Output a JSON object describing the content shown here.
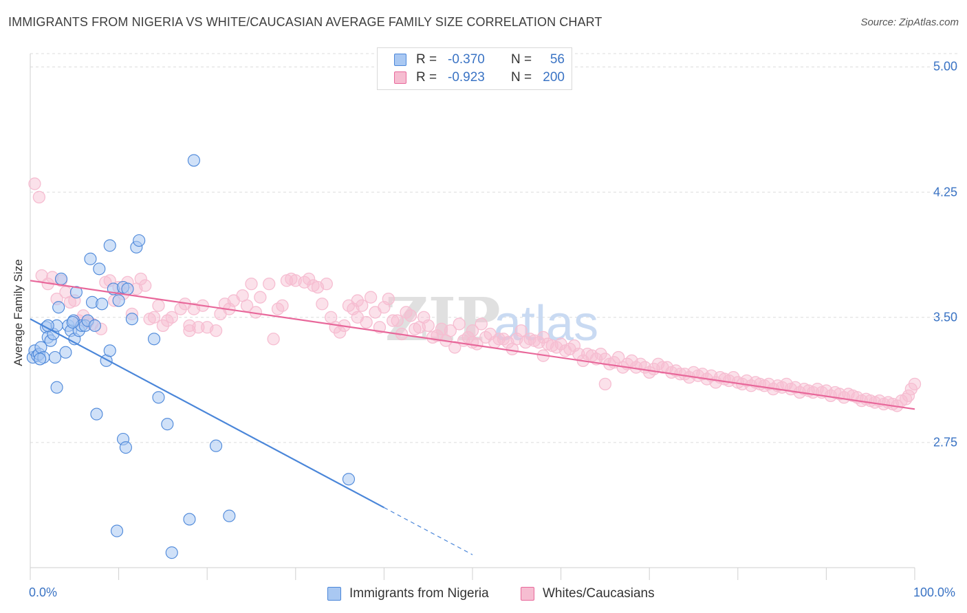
{
  "title": "IMMIGRANTS FROM NIGERIA VS WHITE/CAUCASIAN AVERAGE FAMILY SIZE CORRELATION CHART",
  "source": "Source: ZipAtlas.com",
  "watermark": "ZIPatlas",
  "colors": {
    "blue": "#4a86d9",
    "blue_fill": "#a9c8f2",
    "pink": "#e8679a",
    "pink_fill": "#f6bdd1",
    "tick_text": "#3a73c4"
  },
  "legend": {
    "rows": [
      {
        "r_label": "R =",
        "r_value": "-0.370",
        "n_label": "N =",
        "n_value": "56"
      },
      {
        "r_label": "R =",
        "r_value": "-0.923",
        "n_label": "N =",
        "n_value": "200"
      }
    ]
  },
  "bottom_legend": {
    "series1": "Immigrants from Nigeria",
    "series2": "Whites/Caucasians"
  },
  "chart_data": {
    "type": "scatter",
    "title": "IMMIGRANTS FROM NIGERIA VS WHITE/CAUCASIAN AVERAGE FAMILY SIZE CORRELATION CHART",
    "xlabel": "",
    "ylabel": "Average Family Size",
    "xlim": [
      0,
      100
    ],
    "ylim": [
      2.0,
      5.08
    ],
    "y_ticks": [
      2.75,
      3.5,
      4.25,
      5.0
    ],
    "y_tick_labels": [
      "2.75",
      "3.50",
      "4.25",
      "5.00"
    ],
    "x_tick_labels": [
      "0.0%",
      "100.0%"
    ],
    "grid": "horizontal dashed",
    "legend_position": "top-center",
    "series": [
      {
        "name": "Immigrants from Nigeria",
        "color": "#4a86d9",
        "r": -0.37,
        "n": 56,
        "trend": {
          "x0": 0,
          "y0": 3.49,
          "x1": 40,
          "y1": 2.36,
          "dashed_to_x": 50
        },
        "points": [
          [
            0.3,
            3.26
          ],
          [
            0.5,
            3.3
          ],
          [
            0.8,
            3.27
          ],
          [
            1.0,
            3.28
          ],
          [
            1.2,
            3.32
          ],
          [
            1.5,
            3.26
          ],
          [
            1.8,
            3.44
          ],
          [
            2.0,
            3.38
          ],
          [
            2.3,
            3.36
          ],
          [
            2.6,
            3.4
          ],
          [
            2.8,
            3.26
          ],
          [
            3.2,
            3.56
          ],
          [
            3.5,
            3.73
          ],
          [
            3.0,
            3.45
          ],
          [
            4.0,
            3.29
          ],
          [
            4.3,
            3.45
          ],
          [
            4.6,
            3.42
          ],
          [
            4.9,
            3.48
          ],
          [
            5.2,
            3.65
          ],
          [
            5.0,
            3.37
          ],
          [
            5.5,
            3.42
          ],
          [
            5.8,
            3.45
          ],
          [
            6.2,
            3.45
          ],
          [
            6.5,
            3.48
          ],
          [
            7.0,
            3.59
          ],
          [
            7.3,
            3.45
          ],
          [
            7.8,
            3.79
          ],
          [
            8.1,
            3.58
          ],
          [
            8.6,
            3.24
          ],
          [
            9.0,
            3.3
          ],
          [
            6.8,
            3.85
          ],
          [
            9.4,
            3.67
          ],
          [
            10.0,
            3.6
          ],
          [
            10.5,
            3.68
          ],
          [
            11.0,
            3.67
          ],
          [
            11.5,
            3.49
          ],
          [
            9.0,
            3.93
          ],
          [
            12.0,
            3.92
          ],
          [
            12.3,
            3.96
          ],
          [
            14.0,
            3.37
          ],
          [
            3.0,
            3.08
          ],
          [
            7.5,
            2.92
          ],
          [
            14.5,
            3.02
          ],
          [
            10.5,
            2.77
          ],
          [
            10.8,
            2.72
          ],
          [
            15.5,
            2.86
          ],
          [
            16.0,
            2.09
          ],
          [
            18.0,
            2.29
          ],
          [
            18.5,
            4.44
          ],
          [
            9.8,
            2.22
          ],
          [
            21.0,
            2.73
          ],
          [
            22.5,
            2.31
          ],
          [
            36.0,
            2.53
          ],
          [
            1.1,
            3.25
          ],
          [
            2.0,
            3.45
          ],
          [
            4.8,
            3.47
          ]
        ]
      },
      {
        "name": "Whites/Caucasians",
        "color": "#e8679a",
        "r": -0.923,
        "n": 200,
        "trend": {
          "x0": 0,
          "y0": 3.72,
          "x1": 100,
          "y1": 2.95
        },
        "points": [
          [
            0.5,
            4.3
          ],
          [
            1.0,
            4.22
          ],
          [
            1.3,
            3.75
          ],
          [
            2.0,
            3.7
          ],
          [
            2.5,
            3.74
          ],
          [
            3.0,
            3.61
          ],
          [
            3.5,
            3.72
          ],
          [
            4.0,
            3.65
          ],
          [
            4.5,
            3.59
          ],
          [
            5.0,
            3.6
          ],
          [
            5.5,
            3.48
          ],
          [
            6.0,
            3.51
          ],
          [
            6.5,
            3.47
          ],
          [
            7.0,
            3.46
          ],
          [
            8.0,
            3.43
          ],
          [
            8.5,
            3.71
          ],
          [
            9.0,
            3.72
          ],
          [
            9.5,
            3.6
          ],
          [
            10.0,
            3.68
          ],
          [
            10.5,
            3.64
          ],
          [
            11.0,
            3.71
          ],
          [
            11.5,
            3.52
          ],
          [
            12.0,
            3.67
          ],
          [
            12.5,
            3.73
          ],
          [
            13.0,
            3.69
          ],
          [
            13.5,
            3.49
          ],
          [
            14.0,
            3.5
          ],
          [
            14.5,
            3.57
          ],
          [
            15.0,
            3.45
          ],
          [
            15.5,
            3.48
          ],
          [
            16.0,
            3.5
          ],
          [
            17.0,
            3.55
          ],
          [
            17.5,
            3.58
          ],
          [
            18.0,
            3.45
          ],
          [
            18.5,
            3.55
          ],
          [
            19.0,
            3.44
          ],
          [
            19.5,
            3.57
          ],
          [
            20.0,
            3.44
          ],
          [
            21.0,
            3.42
          ],
          [
            21.5,
            3.52
          ],
          [
            22.0,
            3.58
          ],
          [
            22.5,
            3.55
          ],
          [
            23.0,
            3.6
          ],
          [
            24.0,
            3.63
          ],
          [
            24.5,
            3.57
          ],
          [
            25.0,
            3.7
          ],
          [
            25.5,
            3.53
          ],
          [
            26.0,
            3.62
          ],
          [
            27.0,
            3.7
          ],
          [
            27.5,
            3.37
          ],
          [
            28.0,
            3.55
          ],
          [
            28.5,
            3.57
          ],
          [
            29.0,
            3.72
          ],
          [
            29.5,
            3.73
          ],
          [
            30.0,
            3.72
          ],
          [
            31.0,
            3.71
          ],
          [
            31.5,
            3.73
          ],
          [
            32.0,
            3.69
          ],
          [
            32.5,
            3.68
          ],
          [
            33.0,
            3.58
          ],
          [
            33.5,
            3.7
          ],
          [
            34.0,
            3.5
          ],
          [
            34.5,
            3.44
          ],
          [
            35.0,
            3.41
          ],
          [
            35.5,
            3.45
          ],
          [
            36.0,
            3.57
          ],
          [
            36.5,
            3.55
          ],
          [
            37.0,
            3.6
          ],
          [
            37.5,
            3.57
          ],
          [
            38.0,
            3.47
          ],
          [
            38.5,
            3.62
          ],
          [
            39.0,
            3.53
          ],
          [
            39.5,
            3.44
          ],
          [
            40.0,
            3.56
          ],
          [
            40.5,
            3.61
          ],
          [
            41.0,
            3.48
          ],
          [
            41.5,
            3.48
          ],
          [
            42.0,
            3.4
          ],
          [
            42.5,
            3.53
          ],
          [
            43.0,
            3.51
          ],
          [
            43.5,
            3.43
          ],
          [
            44.0,
            3.44
          ],
          [
            44.5,
            3.5
          ],
          [
            45.0,
            3.45
          ],
          [
            45.5,
            3.38
          ],
          [
            46.0,
            3.39
          ],
          [
            46.5,
            3.43
          ],
          [
            47.0,
            3.36
          ],
          [
            47.5,
            3.42
          ],
          [
            48.0,
            3.32
          ],
          [
            48.5,
            3.46
          ],
          [
            49.0,
            3.36
          ],
          [
            49.5,
            3.38
          ],
          [
            50.0,
            3.35
          ],
          [
            50.5,
            3.34
          ],
          [
            51.0,
            3.46
          ],
          [
            51.5,
            3.38
          ],
          [
            52.0,
            3.4
          ],
          [
            52.5,
            3.35
          ],
          [
            53.0,
            3.37
          ],
          [
            53.5,
            3.37
          ],
          [
            54.0,
            3.35
          ],
          [
            54.5,
            3.31
          ],
          [
            55.0,
            3.37
          ],
          [
            55.5,
            3.42
          ],
          [
            56.0,
            3.35
          ],
          [
            56.5,
            3.37
          ],
          [
            57.0,
            3.36
          ],
          [
            57.5,
            3.35
          ],
          [
            58.0,
            3.27
          ],
          [
            58.5,
            3.34
          ],
          [
            59.0,
            3.33
          ],
          [
            59.5,
            3.32
          ],
          [
            60.0,
            3.34
          ],
          [
            60.5,
            3.3
          ],
          [
            61.0,
            3.31
          ],
          [
            61.5,
            3.33
          ],
          [
            62.0,
            3.28
          ],
          [
            62.5,
            3.24
          ],
          [
            63.0,
            3.28
          ],
          [
            63.5,
            3.27
          ],
          [
            64.0,
            3.25
          ],
          [
            64.5,
            3.28
          ],
          [
            65.0,
            3.25
          ],
          [
            65.5,
            3.22
          ],
          [
            66.0,
            3.23
          ],
          [
            66.5,
            3.26
          ],
          [
            67.0,
            3.2
          ],
          [
            67.5,
            3.22
          ],
          [
            68.0,
            3.24
          ],
          [
            68.5,
            3.2
          ],
          [
            69.0,
            3.22
          ],
          [
            69.5,
            3.2
          ],
          [
            70.0,
            3.17
          ],
          [
            70.5,
            3.19
          ],
          [
            71.0,
            3.22
          ],
          [
            71.5,
            3.2
          ],
          [
            72.0,
            3.2
          ],
          [
            72.5,
            3.17
          ],
          [
            73.0,
            3.18
          ],
          [
            73.5,
            3.16
          ],
          [
            74.0,
            3.16
          ],
          [
            74.5,
            3.14
          ],
          [
            75.0,
            3.17
          ],
          [
            75.5,
            3.15
          ],
          [
            76.0,
            3.16
          ],
          [
            76.5,
            3.13
          ],
          [
            77.0,
            3.15
          ],
          [
            77.5,
            3.11
          ],
          [
            78.0,
            3.14
          ],
          [
            78.5,
            3.13
          ],
          [
            79.0,
            3.12
          ],
          [
            79.5,
            3.14
          ],
          [
            80.0,
            3.11
          ],
          [
            80.5,
            3.1
          ],
          [
            81.0,
            3.12
          ],
          [
            81.5,
            3.09
          ],
          [
            82.0,
            3.11
          ],
          [
            82.5,
            3.1
          ],
          [
            83.0,
            3.09
          ],
          [
            83.5,
            3.1
          ],
          [
            84.0,
            3.07
          ],
          [
            84.5,
            3.09
          ],
          [
            85.0,
            3.08
          ],
          [
            85.5,
            3.1
          ],
          [
            86.0,
            3.07
          ],
          [
            86.5,
            3.08
          ],
          [
            87.0,
            3.05
          ],
          [
            87.5,
            3.07
          ],
          [
            88.0,
            3.06
          ],
          [
            88.5,
            3.05
          ],
          [
            89.0,
            3.07
          ],
          [
            89.5,
            3.05
          ],
          [
            90.0,
            3.06
          ],
          [
            90.5,
            3.03
          ],
          [
            91.0,
            3.05
          ],
          [
            91.5,
            3.04
          ],
          [
            92.0,
            3.02
          ],
          [
            92.5,
            3.04
          ],
          [
            93.0,
            3.03
          ],
          [
            93.5,
            3.02
          ],
          [
            94.0,
            3.0
          ],
          [
            94.5,
            3.01
          ],
          [
            95.0,
            3.0
          ],
          [
            95.5,
            2.99
          ],
          [
            96.0,
            3.0
          ],
          [
            96.5,
            2.98
          ],
          [
            97.0,
            2.99
          ],
          [
            97.5,
            2.98
          ],
          [
            98.0,
            2.97
          ],
          [
            98.5,
            3.0
          ],
          [
            99.0,
            3.01
          ],
          [
            99.3,
            3.03
          ],
          [
            99.6,
            3.07
          ],
          [
            100.0,
            3.1
          ],
          [
            65.0,
            3.1
          ],
          [
            50.0,
            3.42
          ],
          [
            37.0,
            3.5
          ],
          [
            18.0,
            3.42
          ],
          [
            58.0,
            3.38
          ]
        ]
      }
    ]
  }
}
